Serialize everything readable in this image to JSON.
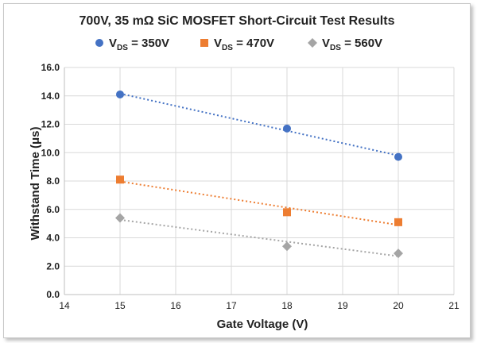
{
  "chart_data": {
    "type": "scatter",
    "title": "700V, 35 mΩ SiC MOSFET Short-Circuit Test Results",
    "xlabel": "Gate Voltage (V)",
    "ylabel": "Withstand Time (μs)",
    "xlim": [
      14,
      21
    ],
    "ylim": [
      0,
      16
    ],
    "x_ticks": [
      "14",
      "15",
      "16",
      "17",
      "18",
      "19",
      "20",
      "21"
    ],
    "y_ticks": [
      "0.0",
      "2.0",
      "4.0",
      "6.0",
      "8.0",
      "10.0",
      "12.0",
      "14.0",
      "16.0"
    ],
    "grid": true,
    "legend_position": "top",
    "trendlines": "dotted linear",
    "series": [
      {
        "name": "V",
        "subscript": "DS",
        "suffix": " = 350V",
        "color": "#4472C4",
        "marker": "circle",
        "x": [
          15,
          18,
          20
        ],
        "values": [
          14.1,
          11.7,
          9.7
        ]
      },
      {
        "name": "V",
        "subscript": "DS",
        "suffix": " = 470V",
        "color": "#ED7D31",
        "marker": "square",
        "x": [
          15,
          18,
          20
        ],
        "values": [
          8.1,
          5.8,
          5.1
        ]
      },
      {
        "name": "V",
        "subscript": "DS",
        "suffix": " = 560V",
        "color": "#A5A5A5",
        "marker": "diamond",
        "x": [
          15,
          18,
          20
        ],
        "values": [
          5.4,
          3.4,
          2.9
        ]
      }
    ]
  }
}
